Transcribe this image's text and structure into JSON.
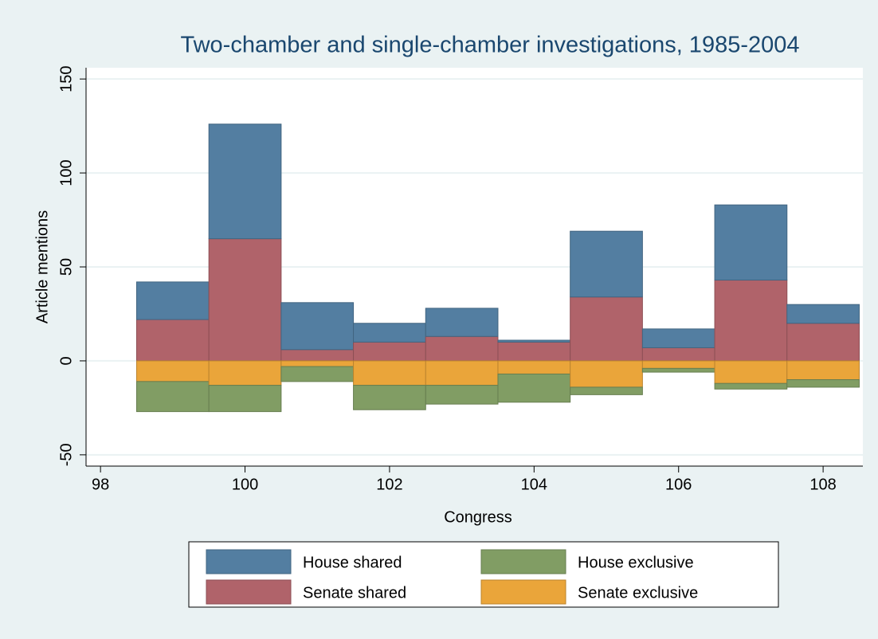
{
  "chart_data": {
    "type": "bar",
    "title": "Two-chamber and single-chamber investigations, 1985-2004",
    "xlabel": "Congress",
    "ylabel": "Article mentions",
    "x": [
      99,
      100,
      101,
      102,
      103,
      104,
      105,
      106,
      107,
      108
    ],
    "series": [
      {
        "name": "Senate shared",
        "color": "#b0636a",
        "values": [
          22,
          65,
          6,
          10,
          13,
          10,
          34,
          7,
          43,
          20
        ]
      },
      {
        "name": "House shared",
        "color": "#537ea1",
        "values": [
          20,
          61,
          25,
          10,
          15,
          1,
          35,
          10,
          40,
          10
        ]
      },
      {
        "name": "Senate exclusive",
        "color": "#eaa53a",
        "values": [
          -11,
          -13,
          -3,
          -13,
          -13,
          -7,
          -14,
          -4,
          -12,
          -10
        ]
      },
      {
        "name": "House exclusive",
        "color": "#819d64",
        "values": [
          -16,
          -14,
          -8,
          -13,
          -10,
          -15,
          -4,
          -2,
          -3,
          -4
        ]
      }
    ],
    "stacked": true,
    "xlim": [
      97.8,
      108.55
    ],
    "xticks": [
      98,
      100,
      102,
      104,
      106,
      108
    ],
    "ylim": [
      -56,
      156
    ],
    "yticks": [
      -50,
      0,
      50,
      100,
      150
    ],
    "grid": true,
    "legend": "bottom"
  }
}
